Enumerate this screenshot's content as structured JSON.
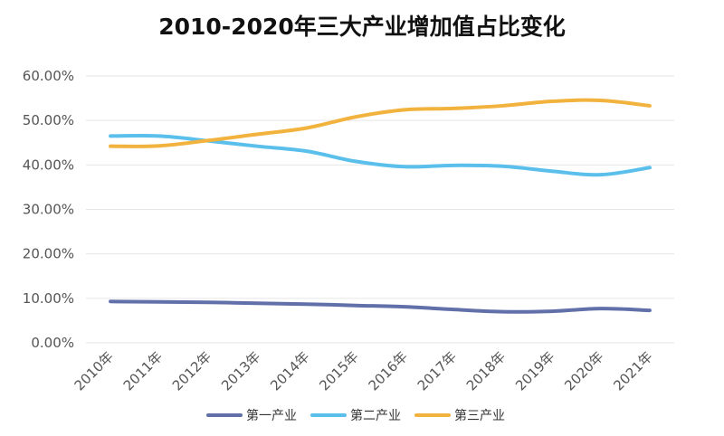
{
  "chart_data": {
    "type": "line",
    "title": "2010-2020年三大产业增加值占比变化",
    "xlabel": "",
    "ylabel": "",
    "categories": [
      "2010年",
      "2011年",
      "2012年",
      "2013年",
      "2014年",
      "2015年",
      "2016年",
      "2017年",
      "2018年",
      "2019年",
      "2020年",
      "2021年"
    ],
    "ylim": [
      0,
      60
    ],
    "yticks": [
      "0.00%",
      "10.00%",
      "20.00%",
      "30.00%",
      "40.00%",
      "50.00%",
      "60.00%"
    ],
    "series": [
      {
        "name": "第一产业",
        "color": "#6270aa",
        "values": [
          9.3,
          9.2,
          9.1,
          8.9,
          8.7,
          8.4,
          8.1,
          7.5,
          7.0,
          7.1,
          7.7,
          7.3
        ]
      },
      {
        "name": "第二产业",
        "color": "#5bbfec",
        "values": [
          46.5,
          46.5,
          45.4,
          44.2,
          43.1,
          40.8,
          39.6,
          39.9,
          39.7,
          38.6,
          37.8,
          39.4
        ]
      },
      {
        "name": "第三产业",
        "color": "#f1b23e",
        "values": [
          44.2,
          44.3,
          45.5,
          46.9,
          48.3,
          50.8,
          52.4,
          52.7,
          53.3,
          54.3,
          54.5,
          53.3
        ]
      }
    ],
    "legend": "bottom",
    "grid": true
  }
}
